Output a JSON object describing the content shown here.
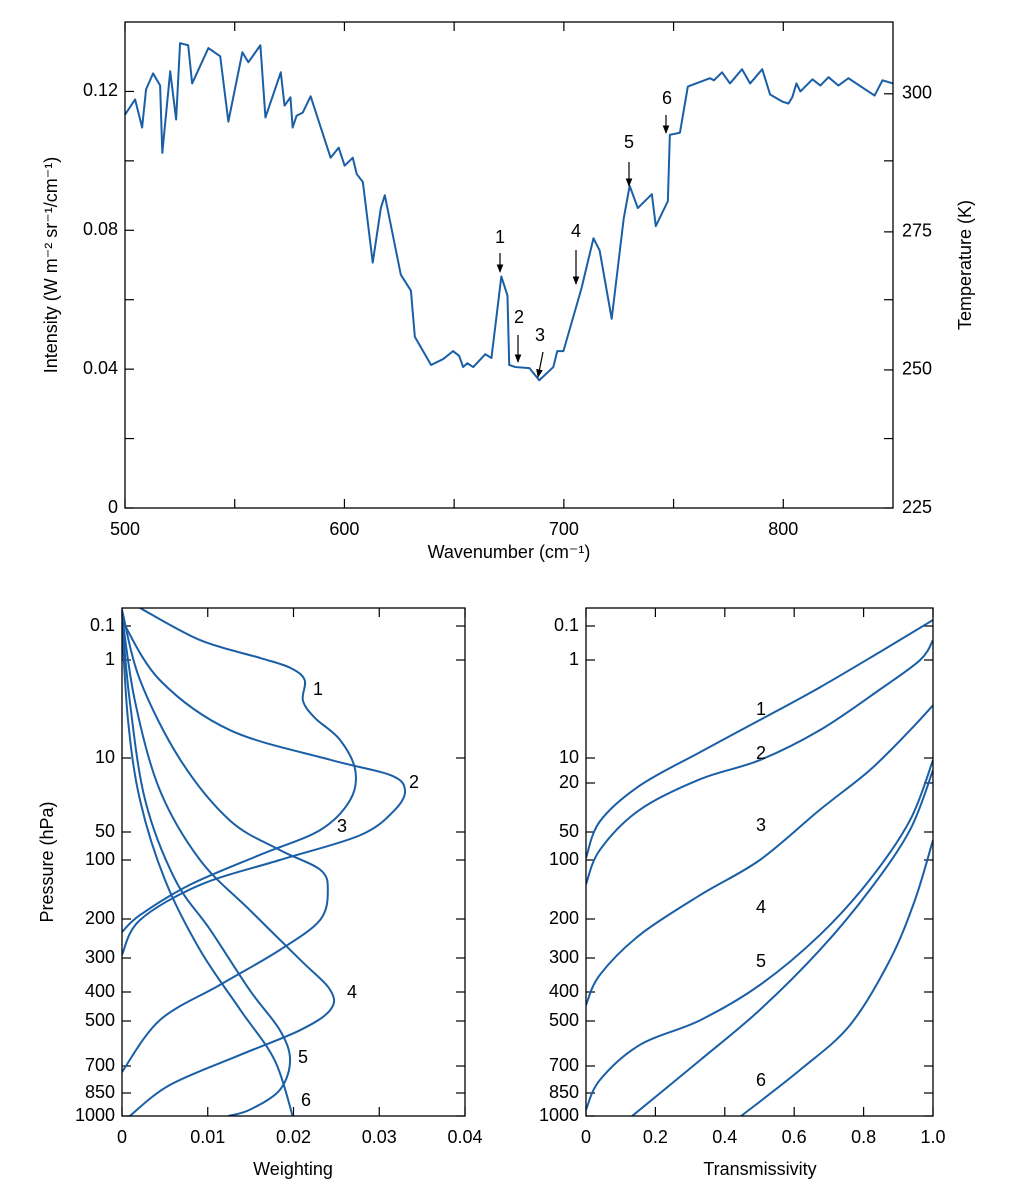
{
  "chart_data": [
    {
      "type": "line",
      "x_label": "Wavenumber (cm⁻¹)",
      "y_label": "Intensity (W m⁻² sr⁻¹/cm⁻¹)",
      "y2_label": "Temperature (K)",
      "xlim": [
        500,
        850
      ],
      "xticks": [
        500,
        600,
        700,
        800
      ],
      "xminorticks": [
        550,
        650,
        750
      ],
      "ylim": [
        0,
        0.14
      ],
      "yticks": [
        0,
        0.04,
        0.08,
        0.12
      ],
      "yminorticks": [
        0.02,
        0.06,
        0.1
      ],
      "y2lim": [
        225,
        313
      ],
      "y2ticks": [
        225,
        250,
        275,
        300
      ],
      "x": [
        500,
        504.6,
        507.8,
        509.6,
        512.8,
        516,
        517,
        520.6,
        523.3,
        525.1,
        528.8,
        530.6,
        538,
        543.4,
        547.1,
        553.5,
        556.2,
        561.7,
        564,
        571,
        572.7,
        575.4,
        576.4,
        578.2,
        581,
        584.6,
        593.7,
        597.4,
        600.1,
        603.8,
        605.6,
        608.4,
        612.9,
        616.6,
        618.4,
        625.7,
        630.3,
        632.1,
        639.5,
        645,
        649.5,
        652.3,
        654.1,
        656,
        658.7,
        664.2,
        667,
        671.5,
        674.3,
        675.1,
        677.9,
        684.3,
        688.8,
        695.2,
        697,
        699.8,
        708,
        713.5,
        716.3,
        721.8,
        727.3,
        730,
        733.7,
        740.1,
        741.9,
        747.4,
        748.3,
        752.9,
        756.5,
        766.6,
        768.4,
        772.1,
        775.7,
        781.2,
        784.9,
        790.4,
        794,
        799.5,
        802.3,
        804.1,
        806,
        807.8,
        813.3,
        816.9,
        820.6,
        825.1,
        829.7,
        841.6,
        845.2,
        850
      ],
      "series": [
        {
          "color": "#1a5fa6",
          "values": [
            0.1133,
            0.1177,
            0.1096,
            0.1206,
            0.1252,
            0.1217,
            0.1023,
            0.1258,
            0.1119,
            0.1339,
            0.1333,
            0.1223,
            0.1325,
            0.1301,
            0.1113,
            0.1313,
            0.1284,
            0.1333,
            0.1125,
            0.1255,
            0.1159,
            0.1183,
            0.1096,
            0.113,
            0.1139,
            0.1186,
            0.1009,
            0.1038,
            0.0986,
            0.1009,
            0.0962,
            0.0939,
            0.0707,
            0.0864,
            0.0901,
            0.0672,
            0.0626,
            0.0493,
            0.0412,
            0.0429,
            0.0452,
            0.0438,
            0.0406,
            0.0417,
            0.0406,
            0.0443,
            0.0432,
            0.0667,
            0.0612,
            0.0412,
            0.0406,
            0.0403,
            0.0368,
            0.0406,
            0.0452,
            0.0452,
            0.0632,
            0.0777,
            0.0742,
            0.0545,
            0.0835,
            0.0928,
            0.0864,
            0.0904,
            0.0812,
            0.0884,
            0.1075,
            0.1081,
            0.1214,
            0.1238,
            0.1232,
            0.1255,
            0.1223,
            0.1264,
            0.1223,
            0.1264,
            0.1191,
            0.1171,
            0.1165,
            0.1183,
            0.1223,
            0.12,
            0.1235,
            0.1217,
            0.1241,
            0.1217,
            0.1238,
            0.1188,
            0.1232,
            0.1223
          ]
        }
      ],
      "annotations": [
        "1",
        "2",
        "3",
        "4",
        "5",
        "6"
      ]
    },
    {
      "type": "profile",
      "x_label": "Weighting",
      "y_label": "Pressure (hPa)",
      "xlim": [
        0,
        0.04
      ],
      "xticks": [
        0,
        0.01,
        0.02,
        0.03,
        0.04
      ],
      "ylim": [
        1000,
        0.03
      ],
      "yticks": [
        0.1,
        1,
        10,
        50,
        100,
        200,
        300,
        400,
        500,
        700,
        850,
        1000
      ],
      "series": [
        {
          "name": "1",
          "color": "#1a5fa6",
          "values": [
            0.0021,
            0.0091,
            0.0161,
            0.0196,
            0.0213,
            0.0211,
            0.0225,
            0.0254,
            0.0272,
            0.0266,
            0.0231,
            0.0161,
            0.0079,
            0.0021,
            0
          ],
          "pressure": [
            0.03,
            0.26,
            0.87,
            1.2,
            1.6,
            2.6,
            3.9,
            6.5,
            13,
            25,
            48,
            88,
            134,
            191,
            229
          ]
        },
        {
          "name": "2",
          "color": "#1a5fa6",
          "values": [
            0,
            0.0044,
            0.0126,
            0.0243,
            0.0313,
            0.033,
            0.0318,
            0.0278,
            0.0184,
            0.0091,
            0.0021,
            0
          ],
          "pressure": [
            0.067,
            1.6,
            5.2,
            10.4,
            14.5,
            20,
            31,
            54,
            100,
            134,
            202,
            290
          ]
        },
        {
          "name": "3",
          "color": "#1a5fa6",
          "values": [
            0,
            0.0021,
            0.0068,
            0.0126,
            0.0184,
            0.0231,
            0.024,
            0.0231,
            0.0184,
            0.0114,
            0.0044,
            0
          ],
          "pressure": [
            0.034,
            1.6,
            10.4,
            39,
            78,
            112,
            142,
            202,
            276,
            377,
            497,
            731
          ]
        },
        {
          "name": "4",
          "color": "#1a5fa6",
          "values": [
            0,
            0.0015,
            0.0044,
            0.0091,
            0.0149,
            0.0208,
            0.0243,
            0.0243,
            0.0208,
            0.0138,
            0.0056,
            0.0009
          ],
          "pressure": [
            0.048,
            2.6,
            20,
            100,
            180,
            305,
            394,
            459,
            535,
            644,
            802,
            1000
          ]
        },
        {
          "name": "5",
          "color": "#1a5fa6",
          "values": [
            0,
            0.0009,
            0.0027,
            0.0062,
            0.0103,
            0.0149,
            0.0184,
            0.0196,
            0.0184,
            0.0149,
            0.0124
          ],
          "pressure": [
            0.067,
            2.6,
            25,
            126,
            224,
            394,
            535,
            670,
            832,
            957,
            1000
          ]
        },
        {
          "name": "6",
          "color": "#1a5fa6",
          "values": [
            0,
            0.0007,
            0.0021,
            0.005,
            0.0091,
            0.0138,
            0.0178,
            0.0199
          ],
          "pressure": [
            0.09,
            4.1,
            25,
            126,
            276,
            459,
            670,
            1000
          ]
        }
      ]
    },
    {
      "type": "profile",
      "x_label": "Transmissivity",
      "xlim": [
        0,
        1
      ],
      "xticks": [
        0,
        0.2,
        0.4,
        0.6,
        0.8,
        {
          "value": 1,
          "label": "1.0"
        }
      ],
      "ylim": [
        1000,
        0.03
      ],
      "yticks": [
        0.1,
        1,
        10,
        20,
        50,
        100,
        200,
        300,
        400,
        500,
        700,
        850,
        1000
      ],
      "series": [
        {
          "name": "1",
          "color": "#1a5fa6",
          "values": [
            0,
            0.04,
            0.155,
            0.329,
            0.501,
            0.674,
            0.847,
            1
          ],
          "pressure": [
            95,
            41,
            21,
            8.7,
            4.1,
            1.9,
            0.58,
            0.067
          ]
        },
        {
          "name": "2",
          "color": "#1a5fa6",
          "values": [
            0,
            0.04,
            0.155,
            0.329,
            0.501,
            0.674,
            0.847,
            0.963,
            1
          ],
          "pressure": [
            133,
            78,
            33,
            18,
            10.6,
            5.2,
            2,
            1,
            0.26
          ]
        },
        {
          "name": "3",
          "color": "#1a5fa6",
          "values": [
            0,
            0.04,
            0.155,
            0.329,
            0.501,
            0.674,
            0.818,
            0.934,
            1
          ],
          "pressure": [
            442,
            346,
            236,
            151,
            100,
            33,
            14,
            5.2,
            2.9
          ]
        },
        {
          "name": "4",
          "color": "#1a5fa6",
          "values": [
            0,
            0.04,
            0.155,
            0.329,
            0.501,
            0.674,
            0.818,
            0.934,
            1
          ],
          "pressure": [
            957,
            774,
            598,
            497,
            377,
            236,
            126,
            40,
            10.6
          ]
        },
        {
          "name": "5",
          "color": "#1a5fa6",
          "values": [
            0.133,
            0.329,
            0.501,
            0.674,
            0.818,
            0.934,
            1
          ],
          "pressure": [
            1000,
            670,
            459,
            276,
            142,
            48,
            14
          ]
        },
        {
          "name": "6",
          "color": "#1a5fa6",
          "values": [
            0.447,
            0.617,
            0.761,
            0.876,
            0.948,
            1
          ],
          "pressure": [
            1000,
            720,
            515,
            305,
            160,
            61
          ]
        }
      ]
    }
  ]
}
